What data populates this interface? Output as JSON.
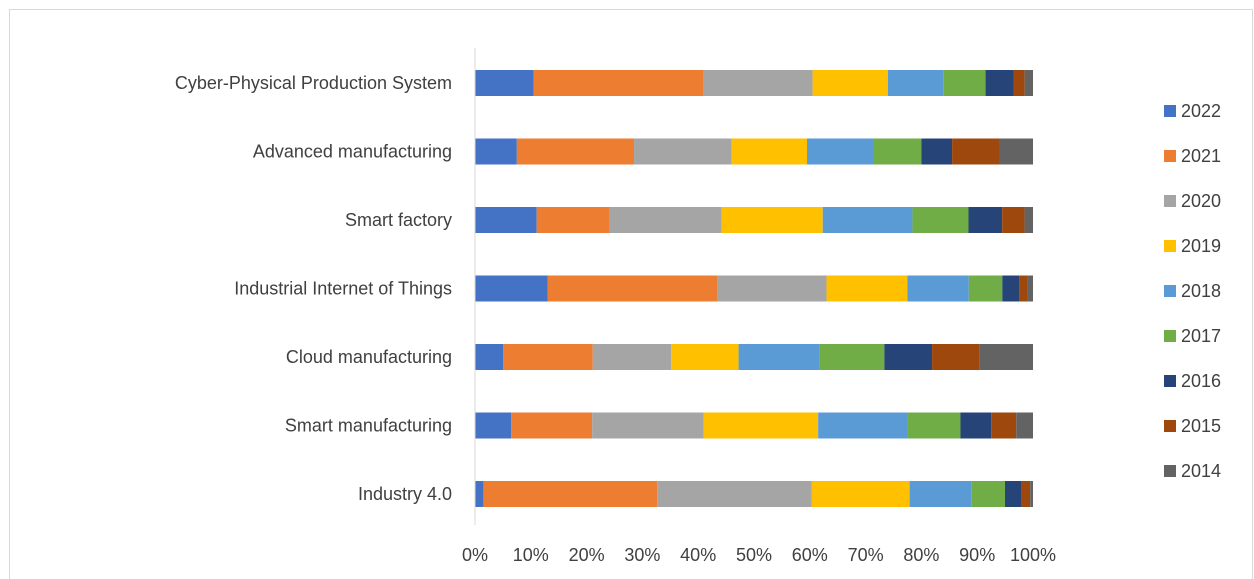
{
  "chart_data": {
    "type": "bar",
    "orientation": "horizontal",
    "stacking": "percent",
    "categories": [
      "Cyber-Physical Production System",
      "Advanced manufacturing",
      "Smart factory",
      "Industrial Internet of Things",
      "Cloud manufacturing",
      "Smart manufacturing",
      "Industry 4.0"
    ],
    "series": [
      {
        "name": "2022",
        "color": "#4472C4",
        "values": [
          10.5,
          7.5,
          11,
          13,
          5,
          6.5,
          1.5
        ]
      },
      {
        "name": "2021",
        "color": "#ED7D31",
        "values": [
          30.5,
          21,
          13,
          30.5,
          16,
          14.5,
          31
        ]
      },
      {
        "name": "2020",
        "color": "#A5A5A5",
        "values": [
          19.5,
          17.5,
          20,
          19.5,
          14,
          20,
          27.5
        ]
      },
      {
        "name": "2019",
        "color": "#FFC000",
        "values": [
          13.5,
          13.5,
          18,
          14.5,
          12,
          20.5,
          17.5
        ]
      },
      {
        "name": "2018",
        "color": "#5B9BD5",
        "values": [
          10,
          12,
          16,
          11,
          14.5,
          16,
          11
        ]
      },
      {
        "name": "2017",
        "color": "#70AD47",
        "values": [
          7.5,
          8.5,
          10,
          6,
          11.5,
          9.5,
          6
        ]
      },
      {
        "name": "2016",
        "color": "#264478",
        "values": [
          5,
          5.5,
          6,
          3,
          8.5,
          5.5,
          3
        ]
      },
      {
        "name": "2015",
        "color": "#9E480E",
        "values": [
          2,
          8.5,
          4,
          1.5,
          8.5,
          4.5,
          1.5
        ]
      },
      {
        "name": "2014",
        "color": "#636363",
        "values": [
          1.5,
          6,
          1.5,
          1,
          9.5,
          3,
          0.5
        ]
      }
    ],
    "x_ticks": [
      "0%",
      "10%",
      "20%",
      "30%",
      "40%",
      "50%",
      "60%",
      "70%",
      "80%",
      "90%",
      "100%"
    ],
    "xlim": [
      0,
      100
    ],
    "title": "",
    "xlabel": "",
    "ylabel": "",
    "grid": false,
    "legend_position": "right"
  }
}
